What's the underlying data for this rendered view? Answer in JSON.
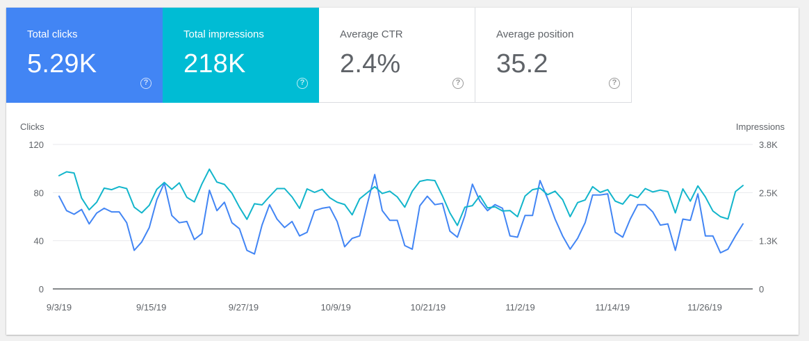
{
  "metrics": [
    {
      "label": "Total clicks",
      "value": "5.29K",
      "color": "#4285f4",
      "state": "selected",
      "icon": "help-icon"
    },
    {
      "label": "Total impressions",
      "value": "218K",
      "color": "#00bcd4",
      "state": "selected",
      "icon": "help-icon"
    },
    {
      "label": "Average CTR",
      "value": "2.4%",
      "state": "unselected",
      "icon": "help-icon"
    },
    {
      "label": "Average position",
      "value": "35.2",
      "state": "unselected",
      "icon": "help-icon"
    }
  ],
  "chart_data": {
    "type": "line",
    "ylabel_left": "Clicks",
    "ylabel_right": "Impressions",
    "ylim_left": [
      0,
      120
    ],
    "ylim_right": [
      0,
      3800
    ],
    "yticks_left": [
      "0",
      "40",
      "80",
      "120"
    ],
    "yticks_right": [
      "0",
      "1.3K",
      "2.5K",
      "3.8K"
    ],
    "xtick_labels": [
      "9/3/19",
      "9/15/19",
      "9/27/19",
      "10/9/19",
      "10/21/19",
      "11/2/19",
      "11/14/19",
      "11/26/19"
    ],
    "grid": true,
    "series": [
      {
        "name": "Clicks",
        "axis": "left",
        "color": "#4285f4",
        "values": [
          77,
          65,
          62,
          66,
          54,
          63,
          67,
          64,
          64,
          55,
          32,
          39,
          51,
          74,
          88,
          61,
          55,
          56,
          41,
          46,
          82,
          65,
          72,
          55,
          50,
          32,
          29,
          53,
          70,
          58,
          51,
          56,
          44,
          47,
          65,
          67,
          68,
          56,
          35,
          42,
          44,
          70,
          95,
          65,
          57,
          57,
          36,
          33,
          69,
          77,
          70,
          71,
          48,
          43,
          61,
          87,
          73,
          65,
          70,
          67,
          44,
          43,
          61,
          61,
          90,
          75,
          58,
          44,
          33,
          42,
          55,
          78,
          78,
          79,
          47,
          43,
          58,
          70,
          70,
          64,
          53,
          54,
          32,
          58,
          57,
          79,
          44,
          44,
          30,
          33,
          44,
          54
        ]
      },
      {
        "name": "Impressions",
        "axis": "right",
        "color": "#12b5cb",
        "values": [
          2980,
          3080,
          3050,
          2390,
          2080,
          2280,
          2650,
          2610,
          2690,
          2640,
          2150,
          2000,
          2200,
          2620,
          2800,
          2620,
          2790,
          2410,
          2290,
          2760,
          3150,
          2810,
          2750,
          2520,
          2150,
          1830,
          2240,
          2210,
          2430,
          2640,
          2640,
          2420,
          2120,
          2630,
          2540,
          2620,
          2400,
          2280,
          2220,
          1950,
          2370,
          2530,
          2690,
          2510,
          2570,
          2420,
          2150,
          2570,
          2830,
          2870,
          2850,
          2450,
          2000,
          1670,
          2150,
          2190,
          2450,
          2130,
          2160,
          2050,
          2060,
          1900,
          2440,
          2610,
          2650,
          2480,
          2570,
          2350,
          1900,
          2270,
          2340,
          2690,
          2540,
          2610,
          2310,
          2230,
          2480,
          2400,
          2640,
          2550,
          2600,
          2560,
          2000,
          2630,
          2310,
          2710,
          2420,
          2050,
          1900,
          1840,
          2560,
          2720
        ]
      }
    ]
  }
}
